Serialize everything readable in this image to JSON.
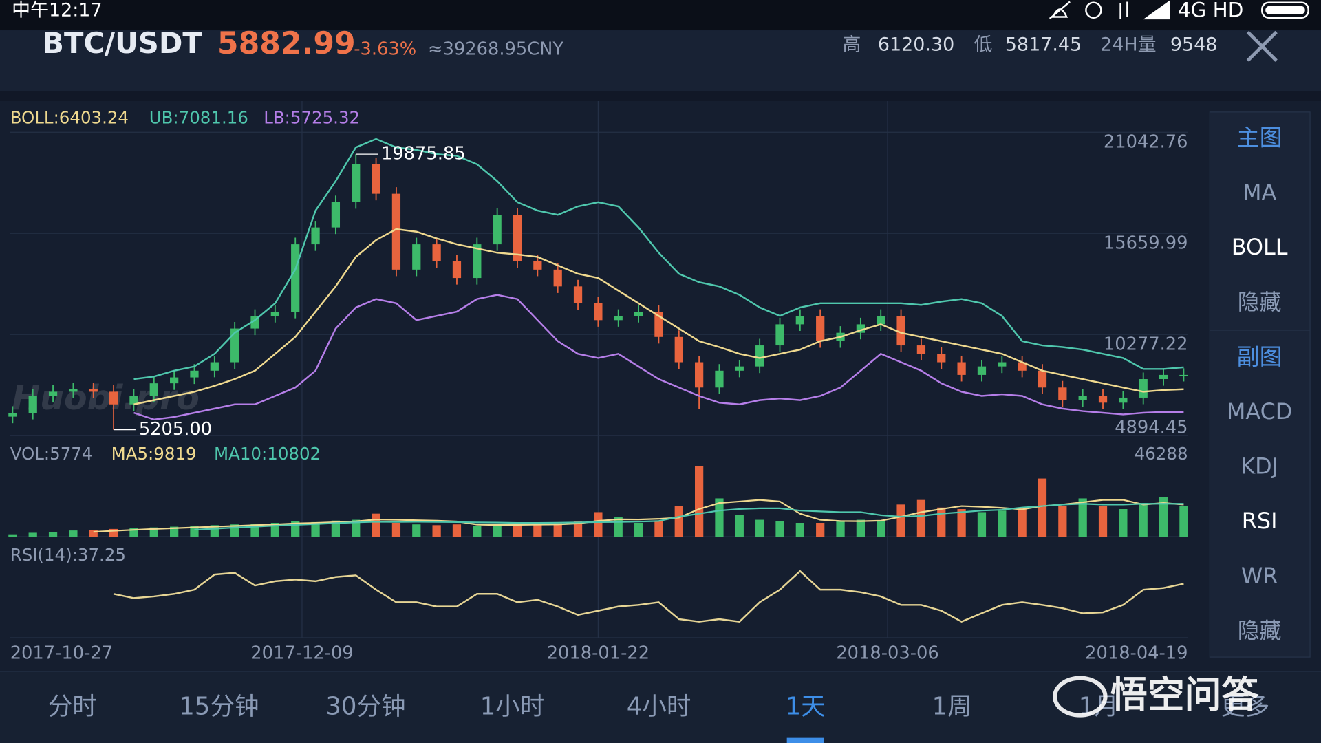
{
  "status_bar": {
    "time": "中午12:17",
    "network": "4G HD"
  },
  "header": {
    "pair": "BTC/USDT",
    "price": "5882.99",
    "change": "-3.63%",
    "cny": "≈39268.95CNY",
    "high_label": "高",
    "high": "6120.30",
    "low_label": "低",
    "low": "5817.45",
    "volume_label": "24H量",
    "volume": "9548"
  },
  "chart_data": [
    {
      "type": "candlestick",
      "x": [
        "2017-10-27",
        "2017-10-30",
        "2017-11-02",
        "2017-11-05",
        "2017-11-08",
        "2017-11-11",
        "2017-11-14",
        "2017-11-17",
        "2017-11-20",
        "2017-11-23",
        "2017-11-26",
        "2017-11-29",
        "2017-12-02",
        "2017-12-05",
        "2017-12-08",
        "2017-12-11",
        "2017-12-14",
        "2017-12-17",
        "2017-12-20",
        "2017-12-23",
        "2017-12-26",
        "2017-12-29",
        "2018-01-01",
        "2018-01-04",
        "2018-01-07",
        "2018-01-10",
        "2018-01-13",
        "2018-01-16",
        "2018-01-19",
        "2018-01-22",
        "2018-01-25",
        "2018-01-28",
        "2018-01-31",
        "2018-02-03",
        "2018-02-06",
        "2018-02-09",
        "2018-02-12",
        "2018-02-15",
        "2018-02-18",
        "2018-02-21",
        "2018-02-24",
        "2018-02-27",
        "2018-03-02",
        "2018-03-05",
        "2018-03-08",
        "2018-03-11",
        "2018-03-14",
        "2018-03-17",
        "2018-03-20",
        "2018-03-23",
        "2018-03-26",
        "2018-03-29",
        "2018-04-01",
        "2018-04-04",
        "2018-04-07",
        "2018-04-10",
        "2018-04-13",
        "2018-04-16",
        "2018-04-19"
      ],
      "open": [
        5900,
        6105,
        7002,
        7227,
        7361,
        7227,
        6554,
        7002,
        7675,
        7990,
        8348,
        8797,
        10591,
        11264,
        11488,
        15077,
        15974,
        17320,
        19339,
        17769,
        13731,
        15077,
        14180,
        13283,
        15077,
        16647,
        14180,
        13731,
        12834,
        11937,
        11040,
        11264,
        11488,
        10143,
        8797,
        7451,
        8348,
        8573,
        9694,
        10816,
        11264,
        9918,
        10367,
        10816,
        11264,
        9694,
        9245,
        8797,
        8124,
        8573,
        8797,
        8348,
        7451,
        6778,
        7002,
        6644,
        6913,
        7900,
        8124
      ],
      "high": [
        6455,
        7352,
        7577,
        7711,
        7711,
        7577,
        7352,
        8025,
        8340,
        8698,
        9147,
        10941,
        11614,
        11838,
        15427,
        16324,
        17670,
        19875.85,
        19689,
        18119,
        15427,
        15427,
        14530,
        15427,
        16997,
        16997,
        14530,
        14081,
        13184,
        12287,
        11614,
        11838,
        11838,
        10493,
        9147,
        8698,
        8923,
        10044,
        11166,
        11614,
        11614,
        10717,
        11166,
        11614,
        11614,
        10044,
        9595,
        9147,
        8923,
        9147,
        9147,
        8698,
        7801,
        7352,
        7352,
        7263,
        8250,
        8474,
        8474
      ],
      "low": [
        5550,
        5755,
        6652,
        6877,
        6877,
        5205.0,
        6204,
        6652,
        7325,
        7640,
        7998,
        8447,
        10241,
        10914,
        11138,
        14727,
        15624,
        16970,
        17419,
        13381,
        13381,
        13830,
        12933,
        12933,
        14727,
        13830,
        13381,
        12484,
        11587,
        10690,
        10690,
        10914,
        9793,
        8447,
        6300,
        7101,
        7998,
        8223,
        9344,
        10466,
        9568,
        9568,
        10017,
        10466,
        9344,
        8895,
        8447,
        7774,
        7774,
        8223,
        7998,
        7101,
        6428,
        6428,
        6294,
        6294,
        6563,
        7550,
        7774
      ],
      "close": [
        6105,
        7002,
        7227,
        7361,
        7227,
        6554,
        7002,
        7675,
        7990,
        8348,
        8797,
        10591,
        11264,
        11488,
        15077,
        15974,
        17320,
        19339,
        17769,
        13731,
        15077,
        14180,
        13283,
        15077,
        16647,
        14180,
        13731,
        12834,
        11937,
        11040,
        11264,
        11488,
        10143,
        8797,
        7451,
        8348,
        8573,
        9694,
        10816,
        11264,
        9918,
        10367,
        10816,
        11264,
        9694,
        9245,
        8797,
        8124,
        8573,
        8797,
        8348,
        7451,
        6778,
        7002,
        6644,
        6913,
        7900,
        8124,
        8124
      ],
      "up_color": "#3dba6a",
      "down_color": "#e8643e",
      "series": [
        {
          "name": "BOLL:6403.24",
          "color": "#efd98f",
          "values": [
            null,
            null,
            null,
            null,
            null,
            null,
            6554,
            6778,
            7002,
            7227,
            7541,
            7900,
            8348,
            9245,
            10143,
            11488,
            12834,
            14404,
            15302,
            15885,
            15750,
            15391,
            15077,
            14853,
            14629,
            14539,
            14404,
            13956,
            13507,
            13283,
            12610,
            11937,
            11264,
            10591,
            9918,
            9604,
            9245,
            9021,
            9245,
            9470,
            9918,
            10143,
            10502,
            10816,
            10367,
            10143,
            9918,
            9694,
            9470,
            9245,
            8797,
            8348,
            8124,
            7900,
            7675,
            7451,
            7227,
            7316,
            7361
          ]
        },
        {
          "name": "UB:7081.16",
          "color": "#4fc7ad",
          "values": [
            null,
            null,
            null,
            null,
            null,
            null,
            7900,
            8034,
            8348,
            8573,
            9245,
            10367,
            11040,
            11937,
            13731,
            16872,
            18442,
            20236,
            20685,
            20236,
            20102,
            19877,
            19788,
            19339,
            18442,
            17320,
            16872,
            16647,
            17096,
            17320,
            17096,
            15974,
            14629,
            13507,
            13059,
            12834,
            12386,
            11713,
            11264,
            11713,
            11937,
            11937,
            11937,
            11937,
            11937,
            11847,
            12027,
            12161,
            11937,
            11264,
            9918,
            9694,
            9604,
            9470,
            9245,
            9021,
            8438,
            8438,
            8528
          ]
        },
        {
          "name": "LB:5725.32",
          "color": "#b57ee8",
          "values": [
            null,
            null,
            null,
            null,
            null,
            null,
            6105,
            5746,
            5881,
            6105,
            6330,
            6554,
            6554,
            7002,
            7451,
            8348,
            10591,
            11713,
            12161,
            11937,
            11040,
            11264,
            11488,
            12161,
            12386,
            12161,
            11040,
            9918,
            9245,
            9021,
            9245,
            8573,
            7900,
            7451,
            7002,
            6644,
            6554,
            6778,
            6868,
            6778,
            7002,
            7451,
            8348,
            9245,
            8797,
            8348,
            7675,
            7227,
            7002,
            7092,
            7002,
            6554,
            6330,
            6195,
            6105,
            6016,
            6105,
            6150,
            6150
          ]
        }
      ],
      "xlim": [
        "2017-10-27",
        "2018-04-19"
      ],
      "xticks": [
        "2017-10-27",
        "2017-12-09",
        "2018-01-22",
        "2018-03-06",
        "2018-04-19"
      ],
      "ylim": [
        4894.45,
        22703
      ],
      "yticks": [
        21042.76,
        15659.99,
        10277.22,
        4894.45
      ],
      "grid": true,
      "max_label": "19875.85",
      "min_label": "5205.00"
    },
    {
      "type": "bar",
      "label": "VOL:5774",
      "values": [
        1500,
        2500,
        3000,
        4000,
        4500,
        5000,
        5500,
        6000,
        6500,
        7000,
        7500,
        8000,
        8500,
        9000,
        10000,
        9500,
        10500,
        11000,
        15000,
        9000,
        8000,
        7500,
        8000,
        7000,
        7500,
        8500,
        8000,
        9000,
        10000,
        16000,
        13000,
        9000,
        10000,
        20000,
        46288,
        25000,
        14000,
        11000,
        10000,
        9000,
        9000,
        10000,
        11000,
        10500,
        21000,
        24000,
        19000,
        18000,
        16000,
        17000,
        19000,
        38000,
        20000,
        25000,
        20000,
        18000,
        22000,
        26000,
        20000
      ],
      "series": [
        {
          "name": "MA5:9819",
          "color": "#efd98f",
          "values": [
            null,
            null,
            null,
            null,
            3100,
            3800,
            4400,
            5000,
            5500,
            6000,
            6500,
            7000,
            7500,
            8000,
            8600,
            9000,
            9500,
            10000,
            11200,
            11000,
            10700,
            10400,
            9900,
            7900,
            7600,
            7700,
            7900,
            8000,
            8600,
            10300,
            11300,
            11200,
            11600,
            12400,
            18000,
            22000,
            23000,
            24000,
            23000,
            15000,
            11000,
            10200,
            10100,
            10400,
            13000,
            16000,
            18000,
            20000,
            19500,
            18800,
            17800,
            20000,
            21000,
            22500,
            24000,
            24000,
            21000,
            22000,
            21000
          ]
        },
        {
          "name": "MA10:10802",
          "color": "#4fc7ad",
          "values": [
            null,
            null,
            null,
            null,
            null,
            null,
            null,
            null,
            null,
            4500,
            5200,
            5900,
            6500,
            7100,
            7700,
            8200,
            8800,
            9300,
            9700,
            9600,
            9700,
            9600,
            9500,
            9300,
            9200,
            8900,
            8900,
            9100,
            9300,
            9500,
            9600,
            9800,
            10200,
            13000,
            15000,
            17000,
            18000,
            18500,
            18500,
            17000,
            16500,
            16000,
            16000,
            14000,
            13000,
            13500,
            15000,
            16000,
            17000,
            17500,
            19000,
            20000,
            21000,
            21500,
            21000,
            21000,
            21500,
            21500,
            21500
          ]
        }
      ],
      "ylim": [
        0,
        46288
      ],
      "yticks": [
        46288
      ]
    },
    {
      "type": "line",
      "ylim": [
        0,
        100
      ],
      "series": [
        {
          "name": "RSI(14):37.25",
          "color": "#e6d595",
          "values": [
            null,
            null,
            null,
            null,
            null,
            48.6,
            43.9,
            45.8,
            48.6,
            53.3,
            70.1,
            72.0,
            57.9,
            62.6,
            64.5,
            62.6,
            67.3,
            69.2,
            53.3,
            39.3,
            39.3,
            34.6,
            34.6,
            48.6,
            48.6,
            39.3,
            42.1,
            34.6,
            25.2,
            29.9,
            34.6,
            36.4,
            39.3,
            20.6,
            17.8,
            20.6,
            17.8,
            39.3,
            53.3,
            73.8,
            53.3,
            53.3,
            50.5,
            45.8,
            36.4,
            36.4,
            29.9,
            17.8,
            27.1,
            36.4,
            39.3,
            36.4,
            32.7,
            27.1,
            28.0,
            36.4,
            53.3,
            55.1,
            59.8
          ]
        }
      ]
    }
  ],
  "side_menu": {
    "main": {
      "title": "主图",
      "items": [
        "MA",
        "BOLL",
        "隐藏"
      ],
      "active": 1
    },
    "sub": {
      "title": "副图",
      "items": [
        "MACD",
        "KDJ",
        "RSI",
        "WR",
        "隐藏"
      ],
      "active": 2
    }
  },
  "tabs": {
    "items": [
      "分时",
      "15分钟",
      "30分钟",
      "1小时",
      "4小时",
      "1天",
      "1周",
      "1月",
      "更多"
    ],
    "active": 5
  },
  "watermark": {
    "exchange": "Huobi.pro",
    "source": "悟空问答"
  }
}
